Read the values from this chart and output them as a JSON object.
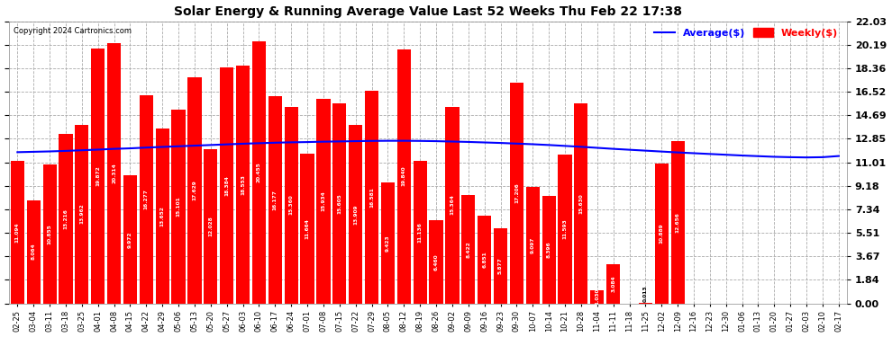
{
  "title": "Solar Energy & Running Average Value Last 52 Weeks Thu Feb 22 17:38",
  "copyright": "Copyright 2024 Cartronics.com",
  "categories": [
    "02-25",
    "03-04",
    "03-11",
    "03-18",
    "03-25",
    "04-01",
    "04-08",
    "04-15",
    "04-22",
    "04-29",
    "05-06",
    "05-13",
    "05-20",
    "05-27",
    "06-03",
    "06-10",
    "06-17",
    "06-24",
    "07-01",
    "07-08",
    "07-15",
    "07-22",
    "07-29",
    "08-05",
    "08-12",
    "08-19",
    "08-26",
    "09-02",
    "09-09",
    "09-16",
    "09-23",
    "09-30",
    "10-07",
    "10-14",
    "10-21",
    "10-28",
    "11-04",
    "11-11",
    "11-18",
    "11-25",
    "12-02",
    "12-09",
    "12-16",
    "12-23",
    "12-30",
    "01-06",
    "01-13",
    "01-20",
    "01-27",
    "02-03",
    "02-10",
    "02-17"
  ],
  "weekly_values": [
    11.094,
    8.064,
    10.855,
    13.216,
    13.962,
    19.872,
    20.314,
    9.972,
    16.277,
    13.652,
    15.101,
    17.629,
    12.028,
    18.384,
    18.553,
    20.455,
    16.177,
    15.36,
    11.664,
    15.934,
    15.605,
    13.909,
    16.581,
    9.423,
    19.84,
    11.136,
    6.46,
    15.364,
    8.422,
    6.851,
    5.877,
    17.206,
    9.097,
    8.396,
    11.593,
    15.63,
    1.03,
    3.084,
    0.0,
    0.013,
    10.889,
    12.656,
    0.0,
    0.0,
    0.0,
    0.0,
    0.0,
    0.0,
    0.0,
    0.0,
    0.0,
    0.0
  ],
  "avg_values": [
    11.8,
    11.83,
    11.86,
    11.9,
    11.95,
    12.0,
    12.06,
    12.1,
    12.16,
    12.21,
    12.26,
    12.31,
    12.36,
    12.41,
    12.46,
    12.5,
    12.54,
    12.57,
    12.59,
    12.62,
    12.64,
    12.66,
    12.68,
    12.69,
    12.69,
    12.68,
    12.66,
    12.63,
    12.6,
    12.56,
    12.52,
    12.47,
    12.42,
    12.36,
    12.29,
    12.22,
    12.14,
    12.06,
    11.99,
    11.92,
    11.85,
    11.78,
    11.72,
    11.66,
    11.6,
    11.54,
    11.49,
    11.44,
    11.41,
    11.39,
    11.41,
    11.5
  ],
  "bar_color": "#ff0000",
  "avg_line_color": "#0000ff",
  "background_color": "#ffffff",
  "grid_color": "#aaaaaa",
  "title_color": "#000000",
  "ytick_labels": [
    "0.00",
    "1.84",
    "3.67",
    "5.51",
    "7.34",
    "9.18",
    "11.01",
    "12.85",
    "14.69",
    "16.52",
    "18.36",
    "20.19",
    "22.03"
  ],
  "yticks": [
    0.0,
    1.84,
    3.67,
    5.51,
    7.34,
    9.18,
    11.01,
    12.85,
    14.69,
    16.52,
    18.36,
    20.19,
    22.03
  ],
  "ymax": 22.03,
  "legend_avg_label": "Average($)",
  "legend_weekly_label": "Weekly($)"
}
